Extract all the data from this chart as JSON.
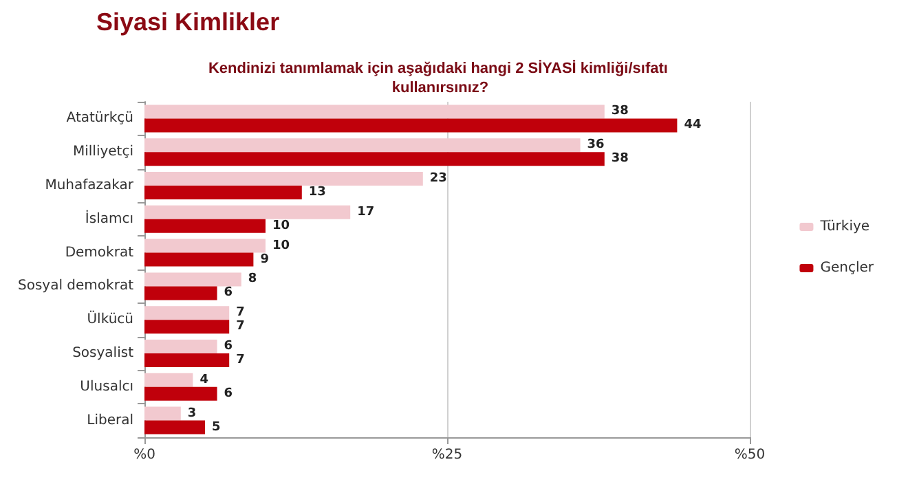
{
  "chart_data": {
    "type": "bar",
    "orientation": "horizontal",
    "title": "Siyasi Kimlikler",
    "subtitle": "Kendinizi tanımlamak için aşağıdaki hangi 2 SİYASİ kimliği/sıfatı kullanırsınız?",
    "categories": [
      "Atatürkçü",
      "Milliyetçi",
      "Muhafazakar",
      "İslamcı",
      "Demokrat",
      "Sosyal demokrat",
      "Ülkücü",
      "Sosyalist",
      "Ulusalcı",
      "Liberal"
    ],
    "series": [
      {
        "name": "Türkiye",
        "color": "#f2c9cf",
        "values": [
          38,
          36,
          23,
          17,
          10,
          8,
          7,
          6,
          4,
          3
        ]
      },
      {
        "name": "Gençler",
        "color": "#c0000b",
        "values": [
          44,
          38,
          13,
          10,
          9,
          6,
          7,
          7,
          6,
          5
        ]
      }
    ],
    "xlim": [
      0,
      50
    ],
    "xticks": [
      {
        "value": 0,
        "label": "%0"
      },
      {
        "value": 25,
        "label": "%25"
      },
      {
        "value": 50,
        "label": "%50"
      }
    ],
    "grid": "x",
    "legend": "right",
    "data_labels": true
  }
}
